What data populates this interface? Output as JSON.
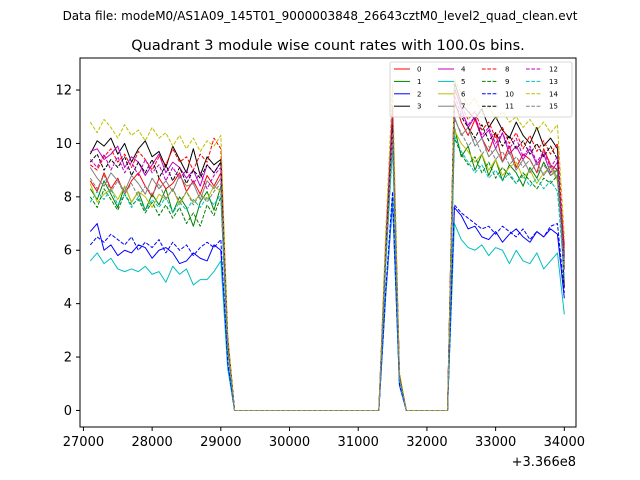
{
  "suptitle": "Data file: modeM0/AS1A09_145T01_9000003848_26643cztM0_level2_quad_clean.evt",
  "chart_data": {
    "type": "line",
    "title": "Quadrant 3 module wise count rates with 100.0s bins.",
    "xlabel": "",
    "ylabel": "",
    "x_offset_label": "+3.366e8",
    "xlim": [
      26950,
      34170
    ],
    "ylim": [
      -0.62,
      13.2
    ],
    "xticks": [
      27000,
      28000,
      29000,
      30000,
      31000,
      32000,
      33000,
      34000
    ],
    "yticks": [
      0,
      2,
      4,
      6,
      8,
      10,
      12
    ],
    "x": [
      27100,
      27200,
      27300,
      27400,
      27500,
      27600,
      27700,
      27800,
      27900,
      28000,
      28100,
      28200,
      28300,
      28400,
      28500,
      28600,
      28700,
      28800,
      28900,
      29000,
      29100,
      29200,
      29300,
      29400,
      29500,
      29600,
      29700,
      29800,
      29900,
      30000,
      30100,
      30200,
      30300,
      30400,
      30500,
      30600,
      30700,
      30800,
      30900,
      31000,
      31100,
      31200,
      31300,
      31400,
      31500,
      31600,
      31700,
      31800,
      31900,
      32000,
      32100,
      32200,
      32300,
      32400,
      32500,
      32600,
      32700,
      32800,
      32900,
      33000,
      33100,
      33200,
      33300,
      33400,
      33500,
      33600,
      33700,
      33800,
      33900,
      34000
    ],
    "legend_position": "top-right",
    "series": [
      {
        "name": "0",
        "color": "#ff0000",
        "dash": "solid",
        "left": [
          8.6,
          8.2,
          8.9,
          8.3,
          8.7,
          8.1,
          8.6,
          8.9,
          8.4,
          8.0,
          8.7,
          8.3,
          8.5,
          8.9,
          8.2,
          8.6,
          8.1,
          8.8,
          8.4,
          8.9
        ],
        "peak": 11.0,
        "right": [
          11.6,
          10.8,
          10.3,
          10.9,
          10.2,
          9.7,
          10.4,
          9.3,
          9.9,
          9.1,
          9.6,
          9.4,
          8.9,
          9.8,
          9.2,
          9.0,
          8.7
        ],
        "last": 6.2
      },
      {
        "name": "1",
        "color": "#008000",
        "dash": "solid",
        "left": [
          8.3,
          7.9,
          8.6,
          8.1,
          7.6,
          8.4,
          7.8,
          8.2,
          7.5,
          8.1,
          7.7,
          8.3,
          7.4,
          8.0,
          7.6,
          6.9,
          7.8,
          8.2,
          7.5,
          8.4
        ],
        "peak": 10.1,
        "right": [
          10.6,
          9.5,
          9.9,
          9.0,
          9.6,
          8.8,
          9.4,
          8.6,
          9.2,
          8.9,
          8.4,
          9.1,
          8.7,
          9.3,
          8.8,
          9.0,
          8.6
        ],
        "last": 5.8
      },
      {
        "name": "2",
        "color": "#0000ff",
        "dash": "solid",
        "left": [
          6.7,
          7.0,
          6.0,
          6.2,
          5.8,
          6.0,
          5.9,
          6.2,
          6.1,
          5.7,
          6.0,
          6.1,
          5.9,
          5.5,
          5.6,
          5.9,
          5.7,
          5.6,
          6.2,
          6.0
        ],
        "peak": 7.8,
        "right": [
          7.6,
          7.3,
          6.8,
          6.9,
          6.5,
          6.4,
          6.7,
          6.3,
          6.6,
          6.8,
          6.5,
          6.3,
          6.7,
          6.5,
          6.8,
          6.6,
          6.4
        ],
        "last": 4.2
      },
      {
        "name": "3",
        "color": "#000000",
        "dash": "solid",
        "left": [
          9.6,
          10.1,
          9.9,
          10.2,
          9.6,
          10.0,
          9.3,
          9.8,
          10.1,
          9.5,
          9.7,
          9.1,
          9.9,
          9.4,
          8.9,
          9.8,
          8.8,
          9.5,
          9.2,
          9.4
        ],
        "peak": 10.8,
        "right": [
          12.3,
          11.5,
          11.2,
          10.9,
          11.3,
          10.6,
          11.0,
          10.5,
          10.2,
          10.8,
          10.3,
          10.0,
          10.6,
          9.9,
          10.2,
          9.8,
          9.6
        ],
        "last": 4.6
      },
      {
        "name": "4",
        "color": "#bf00bf",
        "dash": "solid",
        "left": [
          9.7,
          9.8,
          9.4,
          9.6,
          9.9,
          9.1,
          9.5,
          9.3,
          8.8,
          9.2,
          9.6,
          8.9,
          9.3,
          9.1,
          8.7,
          9.0,
          8.4,
          9.2,
          8.9,
          9.3
        ],
        "peak": 11.4,
        "right": [
          12.1,
          11.3,
          10.6,
          11.0,
          10.2,
          10.5,
          9.8,
          10.4,
          9.6,
          9.9,
          9.4,
          9.8,
          9.2,
          9.6,
          8.9,
          9.3,
          8.8
        ],
        "last": 5.6
      },
      {
        "name": "5",
        "color": "#00bfbf",
        "dash": "solid",
        "left": [
          5.6,
          5.9,
          5.5,
          5.7,
          5.3,
          5.2,
          5.3,
          5.2,
          5.4,
          5.1,
          5.2,
          4.8,
          5.4,
          5.1,
          5.3,
          4.7,
          4.9,
          4.9,
          5.2,
          5.6
        ],
        "peak": 8.0,
        "right": [
          7.0,
          6.4,
          6.1,
          6.0,
          6.2,
          5.8,
          6.1,
          6.0,
          5.5,
          6.0,
          5.6,
          5.5,
          5.9,
          5.3,
          5.6,
          5.9,
          5.3
        ],
        "last": 3.6
      },
      {
        "name": "6",
        "color": "#bfbf00",
        "dash": "solid",
        "left": [
          8.5,
          7.8,
          8.1,
          8.3,
          7.9,
          8.4,
          7.8,
          8.2,
          8.0,
          7.6,
          8.1,
          7.9,
          8.3,
          7.7,
          8.2,
          7.8,
          8.1,
          7.9,
          8.4,
          8.2
        ],
        "peak": 10.5,
        "right": [
          10.5,
          10.0,
          9.7,
          9.3,
          9.6,
          9.0,
          9.4,
          8.8,
          9.1,
          9.3,
          8.7,
          9.0,
          8.5,
          8.9,
          9.1,
          8.6,
          8.9
        ],
        "last": 5.5
      },
      {
        "name": "7",
        "color": "#808080",
        "dash": "solid",
        "left": [
          9.1,
          8.7,
          8.4,
          8.9,
          8.6,
          8.2,
          8.8,
          8.5,
          8.1,
          8.7,
          8.3,
          8.6,
          8.2,
          8.8,
          8.4,
          8.5,
          7.9,
          8.6,
          8.3,
          8.7
        ],
        "peak": 10.9,
        "right": [
          11.0,
          10.3,
          10.6,
          9.9,
          10.2,
          9.5,
          9.8,
          9.3,
          9.7,
          9.0,
          9.4,
          8.9,
          9.3,
          8.8,
          9.2,
          8.7,
          9.0
        ],
        "last": 5.4
      },
      {
        "name": "8",
        "color": "#ff0000",
        "dash": "dashed",
        "left": [
          9.2,
          9.0,
          9.5,
          9.8,
          9.3,
          9.6,
          9.1,
          9.7,
          9.4,
          9.0,
          9.5,
          9.2,
          9.8,
          9.3,
          9.5,
          9.0,
          9.6,
          9.3,
          10.2,
          9.8
        ],
        "peak": 11.2,
        "right": [
          12.0,
          11.4,
          10.9,
          11.2,
          10.5,
          10.8,
          10.2,
          10.6,
          10.0,
          10.4,
          9.8,
          10.3,
          9.7,
          10.1,
          9.6,
          10.0,
          9.5
        ],
        "last": 6.0
      },
      {
        "name": "9",
        "color": "#008000",
        "dash": "dashed",
        "left": [
          8.0,
          7.6,
          8.3,
          7.9,
          7.5,
          8.1,
          7.7,
          7.9,
          7.4,
          7.8,
          7.3,
          7.7,
          7.2,
          7.6,
          7.0,
          7.4,
          6.9,
          7.7,
          7.3,
          8.0
        ],
        "peak": 10.3,
        "right": [
          10.2,
          9.6,
          9.2,
          9.5,
          8.9,
          9.3,
          8.7,
          9.1,
          8.8,
          8.5,
          8.9,
          8.6,
          8.3,
          8.7,
          8.5,
          8.8,
          8.4
        ],
        "last": 5.9
      },
      {
        "name": "10",
        "color": "#0000ff",
        "dash": "dashed",
        "left": [
          6.2,
          6.5,
          6.3,
          6.6,
          6.4,
          6.2,
          6.5,
          6.0,
          6.3,
          6.1,
          6.4,
          5.9,
          6.3,
          6.0,
          6.2,
          5.8,
          6.1,
          6.3,
          6.1,
          6.4
        ],
        "peak": 8.2,
        "right": [
          7.7,
          7.4,
          7.2,
          7.0,
          6.8,
          6.9,
          6.6,
          6.9,
          6.7,
          6.5,
          6.8,
          6.4,
          6.7,
          6.5,
          6.9,
          7.0,
          6.6
        ],
        "last": 4.4
      },
      {
        "name": "11",
        "color": "#000000",
        "dash": "dashed",
        "left": [
          9.3,
          9.6,
          9.0,
          9.4,
          9.1,
          9.5,
          8.8,
          9.3,
          8.9,
          9.4,
          8.7,
          9.2,
          8.6,
          9.1,
          8.5,
          9.0,
          8.7,
          9.2,
          8.9,
          9.3
        ],
        "peak": 10.7,
        "right": [
          11.5,
          11.0,
          10.6,
          10.2,
          10.7,
          10.1,
          10.4,
          9.9,
          10.3,
          9.8,
          10.1,
          9.6,
          10.0,
          9.5,
          9.9,
          9.4,
          9.8
        ],
        "last": 5.3
      },
      {
        "name": "12",
        "color": "#bf00bf",
        "dash": "dashed",
        "left": [
          9.4,
          9.1,
          9.6,
          9.0,
          9.5,
          8.9,
          9.3,
          8.8,
          9.4,
          8.9,
          9.2,
          8.6,
          9.1,
          8.7,
          9.0,
          8.5,
          8.9,
          8.3,
          8.8,
          9.1
        ],
        "peak": 11.1,
        "right": [
          11.8,
          11.1,
          10.7,
          11.0,
          10.3,
          10.6,
          10.0,
          10.4,
          9.8,
          10.2,
          9.5,
          9.9,
          9.3,
          9.7,
          9.1,
          9.5,
          9.0
        ],
        "last": 5.7
      },
      {
        "name": "13",
        "color": "#00bfbf",
        "dash": "dashed",
        "left": [
          7.8,
          8.2,
          7.9,
          8.3,
          7.7,
          8.1,
          7.6,
          8.0,
          7.5,
          7.9,
          7.6,
          8.0,
          7.4,
          7.8,
          7.5,
          7.9,
          7.6,
          8.0,
          7.7,
          8.1
        ],
        "peak": 9.8,
        "right": [
          10.3,
          9.7,
          9.3,
          8.9,
          9.2,
          8.7,
          9.0,
          8.6,
          8.9,
          8.5,
          8.8,
          8.4,
          8.7,
          8.3,
          8.6,
          8.2,
          8.5
        ],
        "last": 5.0
      },
      {
        "name": "14",
        "color": "#bfbf00",
        "dash": "dashed",
        "left": [
          10.8,
          10.4,
          10.9,
          10.6,
          10.2,
          10.7,
          10.3,
          10.5,
          10.1,
          10.6,
          10.2,
          10.4,
          9.9,
          10.3,
          9.8,
          10.2,
          9.7,
          10.1,
          9.9,
          10.3
        ],
        "peak": 12.2,
        "right": [
          12.4,
          11.9,
          11.4,
          11.7,
          11.1,
          11.4,
          10.9,
          11.2,
          10.8,
          11.0,
          10.6,
          10.9,
          10.5,
          10.8,
          10.4,
          10.7,
          10.6
        ],
        "last": 6.5
      },
      {
        "name": "15",
        "color": "#808080",
        "dash": "dashed",
        "left": [
          8.7,
          8.3,
          8.8,
          8.2,
          8.6,
          8.1,
          8.5,
          8.0,
          8.4,
          8.1,
          8.5,
          7.9,
          8.3,
          7.8,
          8.2,
          7.7,
          8.1,
          7.8,
          8.2,
          8.5
        ],
        "peak": 10.4,
        "right": [
          10.9,
          10.4,
          9.9,
          10.2,
          9.6,
          9.9,
          9.4,
          9.7,
          9.2,
          9.5,
          9.1,
          9.4,
          8.9,
          9.2,
          8.8,
          9.1,
          8.8
        ],
        "last": 5.2
      }
    ]
  }
}
